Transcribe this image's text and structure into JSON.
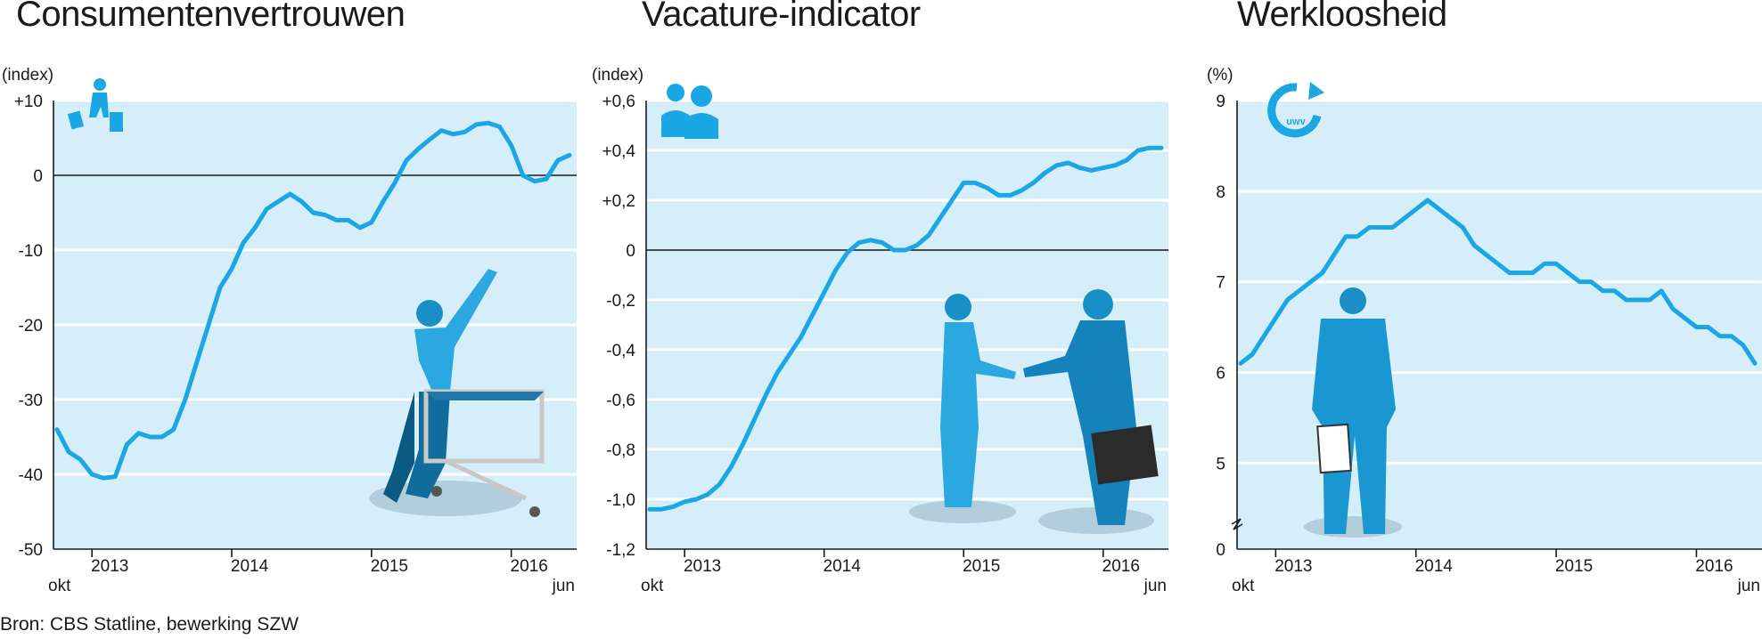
{
  "source": "Bron: CBS Statline, bewerking SZW",
  "chart_data": [
    {
      "type": "line",
      "title": "Consumentenvertrouwen",
      "unit": "(index)",
      "icon": "shopper-icon",
      "illustration": "woman-with-shopping-cart",
      "x_start_label": "okt",
      "x_end_label": "jun",
      "x_ticks": [
        "2013",
        "2014",
        "2015",
        "2016"
      ],
      "y_ticks": [
        "+10",
        "0",
        "-10",
        "-20",
        "-30",
        "-40",
        "-50"
      ],
      "y_tick_values": [
        10,
        0,
        -10,
        -20,
        -30,
        -40,
        -50
      ],
      "ylim": [
        -50,
        10
      ],
      "zero_line": 0,
      "x": [
        0,
        1,
        2,
        3,
        4,
        5,
        6,
        7,
        8,
        9,
        10,
        11,
        12,
        13,
        14,
        15,
        16,
        17,
        18,
        19,
        20,
        21,
        22,
        23,
        24,
        25,
        26,
        27,
        28,
        29,
        30,
        31,
        32,
        33,
        34,
        35,
        36,
        37,
        38,
        39,
        40,
        41,
        42,
        43,
        44
      ],
      "series": [
        {
          "values": [
            -34,
            -37,
            -38,
            -40,
            -40.5,
            -40.3,
            -36,
            -34.5,
            -35,
            -35,
            -34,
            -30,
            -25,
            -20,
            -15,
            -12.5,
            -9,
            -7,
            -4.5,
            -3.5,
            -2.5,
            -3.5,
            -5,
            -5.3,
            -6,
            -6,
            -7,
            -6.3,
            -3.5,
            -1,
            2,
            3.5,
            4.8,
            6,
            5.5,
            5.8,
            6.8,
            7,
            6.5,
            4,
            0,
            -0.8,
            -0.5,
            2,
            2.7
          ]
        }
      ],
      "x_tick_positions": [
        3,
        15,
        27,
        39
      ],
      "grid": true,
      "colors": {
        "line": "#1aa7e3",
        "background": "#d6eef9",
        "grid": "#ffffff"
      }
    },
    {
      "type": "line",
      "title": "Vacature-indicator",
      "unit": "(index)",
      "icon": "people-icon",
      "illustration": "handshake",
      "x_start_label": "okt",
      "x_end_label": "jun",
      "x_ticks": [
        "2013",
        "2014",
        "2015",
        "2016"
      ],
      "y_ticks": [
        "+0,6",
        "+0,4",
        "+0,2",
        "0",
        "-0,2",
        "-0,4",
        "-0,6",
        "-0,8",
        "-1,0",
        "-1,2"
      ],
      "y_tick_values": [
        0.6,
        0.4,
        0.2,
        0,
        -0.2,
        -0.4,
        -0.6,
        -0.8,
        -1.0,
        -1.2
      ],
      "ylim": [
        -1.2,
        0.6
      ],
      "zero_line": 0,
      "x": [
        0,
        1,
        2,
        3,
        4,
        5,
        6,
        7,
        8,
        9,
        10,
        11,
        12,
        13,
        14,
        15,
        16,
        17,
        18,
        19,
        20,
        21,
        22,
        23,
        24,
        25,
        26,
        27,
        28,
        29,
        30,
        31,
        32,
        33,
        34,
        35,
        36,
        37,
        38,
        39,
        40,
        41,
        42,
        43,
        44
      ],
      "series": [
        {
          "values": [
            -1.04,
            -1.04,
            -1.03,
            -1.01,
            -1.0,
            -0.98,
            -0.94,
            -0.87,
            -0.78,
            -0.68,
            -0.58,
            -0.49,
            -0.42,
            -0.35,
            -0.26,
            -0.17,
            -0.08,
            -0.01,
            0.03,
            0.04,
            0.03,
            0.0,
            0.0,
            0.02,
            0.06,
            0.13,
            0.2,
            0.27,
            0.27,
            0.25,
            0.22,
            0.22,
            0.24,
            0.27,
            0.31,
            0.34,
            0.35,
            0.33,
            0.32,
            0.33,
            0.34,
            0.36,
            0.4,
            0.41,
            0.41
          ]
        }
      ],
      "x_tick_positions": [
        3,
        15,
        27,
        39
      ],
      "grid": true,
      "colors": {
        "line": "#1aa7e3",
        "background": "#d6eef9",
        "grid": "#ffffff"
      }
    },
    {
      "type": "line",
      "title": "Werkloosheid",
      "unit": "(%)",
      "icon": "uwv-logo-icon",
      "logo_text": "UWV",
      "illustration": "man-in-suit-with-folder",
      "x_start_label": "okt",
      "x_end_label": "jun",
      "x_ticks": [
        "2013",
        "2014",
        "2015",
        "2016"
      ],
      "y_ticks": [
        "9",
        "8",
        "7",
        "6",
        "5",
        "0"
      ],
      "y_tick_values": [
        9,
        8,
        7,
        6,
        5,
        4.05
      ],
      "ylim": [
        4.05,
        9
      ],
      "axis_break": true,
      "x": [
        0,
        1,
        2,
        3,
        4,
        5,
        6,
        7,
        8,
        9,
        10,
        11,
        12,
        13,
        14,
        15,
        16,
        17,
        18,
        19,
        20,
        21,
        22,
        23,
        24,
        25,
        26,
        27,
        28,
        29,
        30,
        31,
        32,
        33,
        34,
        35,
        36,
        37,
        38,
        39,
        40,
        41,
        42,
        43,
        44
      ],
      "series": [
        {
          "values": [
            6.1,
            6.2,
            6.4,
            6.6,
            6.8,
            6.9,
            7.0,
            7.1,
            7.3,
            7.5,
            7.5,
            7.6,
            7.6,
            7.6,
            7.7,
            7.8,
            7.9,
            7.8,
            7.7,
            7.6,
            7.4,
            7.3,
            7.2,
            7.1,
            7.1,
            7.1,
            7.2,
            7.2,
            7.1,
            7.0,
            7.0,
            6.9,
            6.9,
            6.8,
            6.8,
            6.8,
            6.9,
            6.7,
            6.6,
            6.5,
            6.5,
            6.4,
            6.4,
            6.3,
            6.1
          ]
        }
      ],
      "x_tick_positions": [
        3,
        15,
        27,
        39
      ],
      "grid": true,
      "colors": {
        "line": "#1aa7e3",
        "background": "#d6eef9",
        "grid": "#ffffff"
      }
    }
  ]
}
